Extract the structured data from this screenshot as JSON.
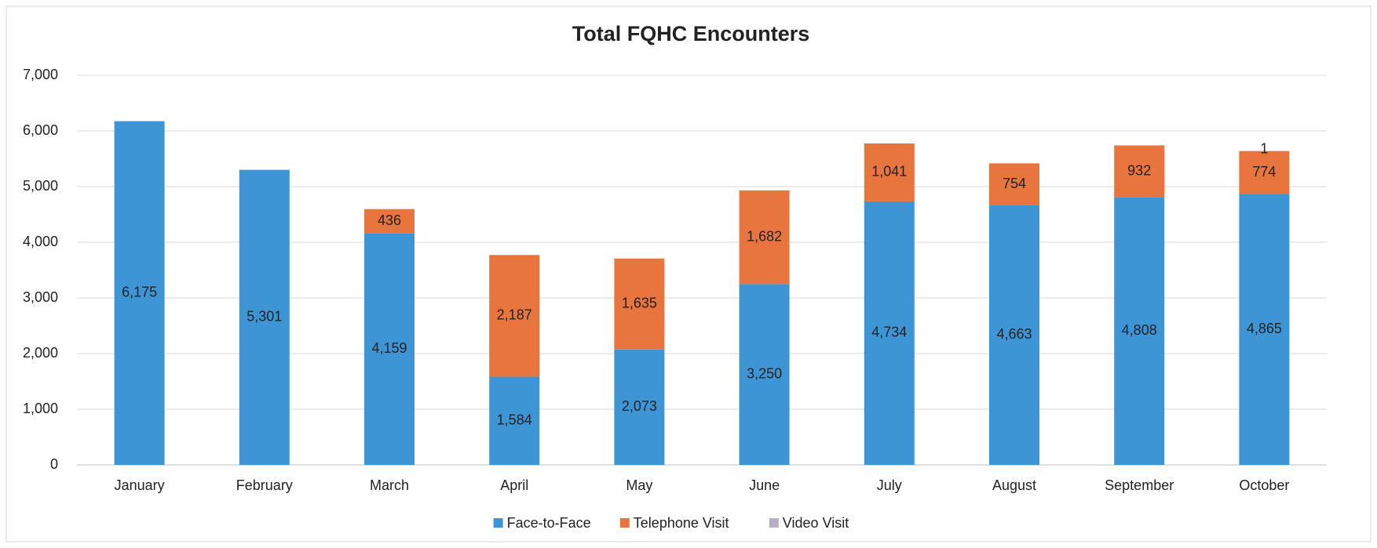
{
  "chart_data": {
    "type": "stacked_bar",
    "title": "Total FQHC Encounters",
    "categories": [
      "January",
      "February",
      "March",
      "April",
      "May",
      "June",
      "July",
      "August",
      "September",
      "October"
    ],
    "series": [
      {
        "name": "Face-to-Face",
        "color": "#3e95d6",
        "values": [
          6175,
          5301,
          4159,
          1584,
          2073,
          3250,
          4734,
          4663,
          4808,
          4865
        ],
        "value_labels": [
          "6,175",
          "5,301",
          "4,159",
          "1,584",
          "2,073",
          "3,250",
          "4,734",
          "4,663",
          "4,808",
          "4,865"
        ]
      },
      {
        "name": "Telephone Visit",
        "color": "#e8743e",
        "values": [
          null,
          null,
          436,
          2187,
          1635,
          1682,
          1041,
          754,
          932,
          774
        ],
        "value_labels": [
          null,
          null,
          "436",
          "2,187",
          "1,635",
          "1,682",
          "1,041",
          "754",
          "932",
          "774"
        ]
      },
      {
        "name": "Video Visit",
        "color": "#b9adc6",
        "values": [
          null,
          null,
          null,
          null,
          null,
          null,
          null,
          null,
          null,
          1
        ]
      }
    ],
    "ylim": [
      0,
      7000
    ],
    "yticks": [
      0,
      {
        "value": 1000,
        "label": "1,000"
      },
      {
        "value": 2000,
        "label": "2,000"
      },
      {
        "value": 3000,
        "label": "3,000"
      },
      {
        "value": 4000,
        "label": "4,000"
      },
      {
        "value": 5000,
        "label": "5,000"
      },
      {
        "value": 6000,
        "label": "6,000"
      },
      {
        "value": 7000,
        "label": "7,000"
      }
    ],
    "grid": true,
    "legend": "bottom"
  }
}
